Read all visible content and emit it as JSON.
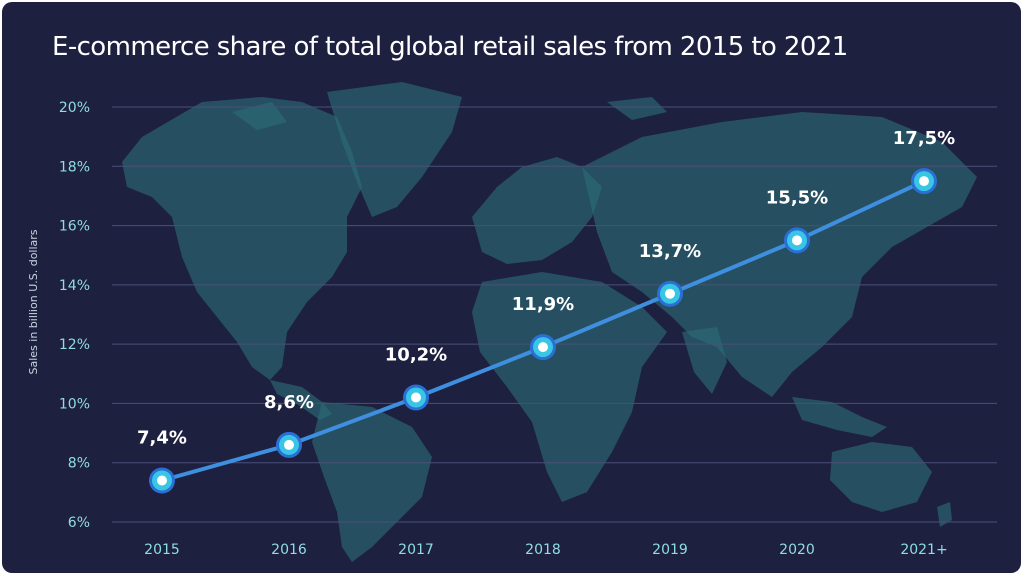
{
  "colors": {
    "background": "#1e2040",
    "line": "#3f8fe0",
    "marker_outer": "#2a6fd6",
    "marker_ring": "#39c6e4",
    "map": "#2b6e76",
    "tick_text": "#8fdde3"
  },
  "chart_data": {
    "type": "line",
    "title": "E-commerce share of total global retail sales from 2015 to 2021",
    "xlabel": "",
    "ylabel": "Sales in billion U.S. dollars",
    "categories": [
      "2015",
      "2016",
      "2017",
      "2018",
      "2019",
      "2020",
      "2021+"
    ],
    "series": [
      {
        "values": [
          7.4,
          8.6,
          10.2,
          11.9,
          13.7,
          15.5,
          17.5
        ],
        "labels": [
          "7,4%",
          "8,6%",
          "10,2%",
          "11,9%",
          "13,7%",
          "15,5%",
          "17,5%"
        ]
      }
    ],
    "ylim": [
      6,
      20
    ],
    "yticks": [
      6,
      8,
      10,
      12,
      14,
      16,
      18,
      20
    ],
    "ytick_labels": [
      "6%",
      "8%",
      "10%",
      "12%",
      "14%",
      "16%",
      "18%",
      "20%"
    ],
    "grid": true,
    "background": "world-map"
  }
}
